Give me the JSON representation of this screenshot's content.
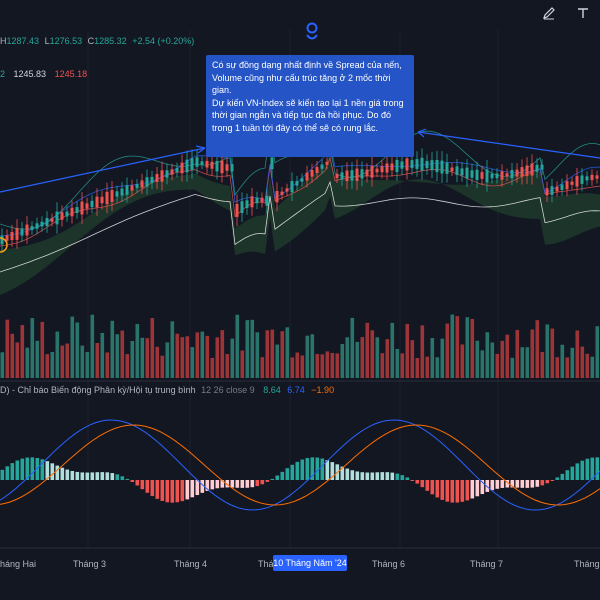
{
  "ohlc": {
    "h_label": "H",
    "h": "1287.43",
    "l_label": "L",
    "l": "1276.53",
    "c_label": "C",
    "c": "1285.32",
    "change": "+2.54 (+0.20%)"
  },
  "ma": {
    "v1": "2",
    "v2": "1245.83",
    "v3": "1245.18"
  },
  "macd": {
    "title": "D) - Chỉ báo Biến động Phân kỳ/Hội tụ trung bình",
    "params": "12 26 close 9",
    "v1": "8.64",
    "v2": "6.74",
    "v3": "−1.90"
  },
  "note": {
    "line1": "Có sự đồng dạng nhất định về Spread của nến, Volume cũng như cấu trúc tăng ở 2 mốc thời gian.",
    "line2": "Dự kiến VN-Index sẽ kiến tạo lại 1 nền giá trong thời gian ngắn và tiếp tục đà hồi phục. Do đó trong 1 tuần tới đây có thể sẽ có rung lắc."
  },
  "xaxis": {
    "labels": [
      "háng Hai",
      "Tháng 3",
      "Tháng 4",
      "Thá",
      "Tháng 6",
      "Tháng 7",
      "Tháng"
    ],
    "badge": "10 Tháng Năm '24"
  },
  "colors": {
    "up": "#26a69a",
    "down": "#ef5350",
    "background": "#131722",
    "ichimoku_cloud": "#1e3a2a",
    "macd_line": "#2962ff",
    "signal_line": "#ff6d00"
  },
  "icons": {
    "pencil": "pencil-icon",
    "text": "text-tool-icon",
    "pin": "pin-icon"
  }
}
